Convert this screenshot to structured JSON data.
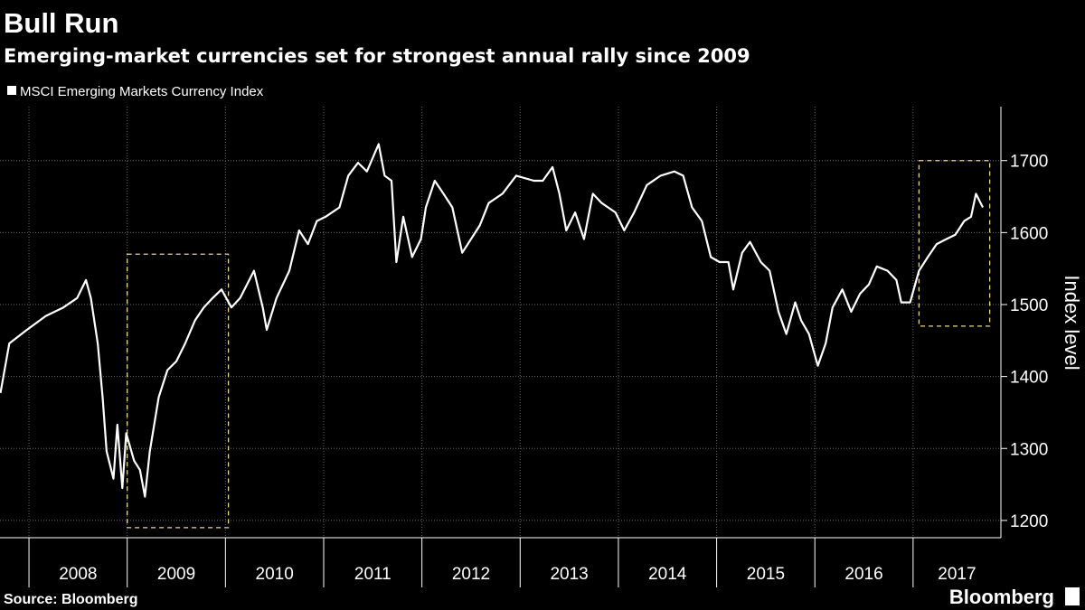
{
  "chart_data": {
    "type": "line",
    "title": "Bull Run",
    "subtitle": "Emerging-market currencies set for strongest annual rally since 2009",
    "y_axis_label": "Index level",
    "source": "Source: Bloomberg",
    "brand": "Bloomberg",
    "x": [
      2007.71,
      2007.8,
      2007.98,
      2008.17,
      2008.35,
      2008.49,
      2008.58,
      2008.63,
      2008.7,
      2008.75,
      2008.79,
      2008.86,
      2008.9,
      2008.95,
      2008.99,
      2009.07,
      2009.13,
      2009.18,
      2009.23,
      2009.32,
      2009.41,
      2009.5,
      2009.59,
      2009.69,
      2009.78,
      2009.87,
      2009.96,
      2010.06,
      2010.15,
      2010.29,
      2010.38,
      2010.42,
      2010.52,
      2010.65,
      2010.75,
      2010.84,
      2010.93,
      2011.02,
      2011.16,
      2011.25,
      2011.35,
      2011.44,
      2011.56,
      2011.62,
      2011.69,
      2011.74,
      2011.81,
      2011.9,
      2011.99,
      2012.04,
      2012.13,
      2012.22,
      2012.31,
      2012.41,
      2012.5,
      2012.59,
      2012.68,
      2012.82,
      2012.96,
      2013.14,
      2013.23,
      2013.33,
      2013.4,
      2013.47,
      2013.56,
      2013.65,
      2013.74,
      2013.83,
      2013.97,
      2014.06,
      2014.16,
      2014.29,
      2014.43,
      2014.57,
      2014.66,
      2014.75,
      2014.85,
      2014.94,
      2015.03,
      2015.12,
      2015.17,
      2015.26,
      2015.34,
      2015.45,
      2015.54,
      2015.63,
      2015.71,
      2015.8,
      2015.86,
      2015.94,
      2016.03,
      2016.11,
      2016.18,
      2016.28,
      2016.37,
      2016.46,
      2016.55,
      2016.63,
      2016.74,
      2016.83,
      2016.88,
      2016.97,
      2017.06,
      2017.15,
      2017.24,
      2017.34,
      2017.43,
      2017.52,
      2017.59,
      2017.64,
      2017.71
    ],
    "series": [
      {
        "name": "MSCI Emerging Markets Currency Index",
        "color": "#ffffff",
        "values": [
          1377,
          1446,
          1465,
          1484,
          1496,
          1509,
          1534,
          1509,
          1446,
          1371,
          1296,
          1258,
          1333,
          1245,
          1321,
          1283,
          1270,
          1233,
          1296,
          1371,
          1409,
          1421,
          1446,
          1478,
          1496,
          1509,
          1521,
          1496,
          1509,
          1547,
          1496,
          1465,
          1509,
          1547,
          1603,
          1584,
          1616,
          1622,
          1635,
          1679,
          1697,
          1685,
          1723,
          1679,
          1672,
          1559,
          1622,
          1566,
          1591,
          1635,
          1672,
          1654,
          1635,
          1572,
          1591,
          1610,
          1641,
          1654,
          1679,
          1672,
          1672,
          1691,
          1654,
          1603,
          1628,
          1591,
          1654,
          1641,
          1628,
          1603,
          1628,
          1666,
          1679,
          1685,
          1679,
          1635,
          1616,
          1566,
          1559,
          1559,
          1521,
          1572,
          1587,
          1559,
          1547,
          1490,
          1459,
          1503,
          1478,
          1459,
          1415,
          1446,
          1496,
          1521,
          1490,
          1515,
          1528,
          1553,
          1547,
          1534,
          1503,
          1503,
          1547,
          1566,
          1584,
          1591,
          1597,
          1616,
          1622,
          1654,
          1635
        ]
      }
    ],
    "xlim": [
      2007.705,
      2017.894
    ],
    "ylim": [
      1176,
      1775
    ],
    "yticks": [
      1200,
      1300,
      1400,
      1500,
      1600,
      1700
    ],
    "xticks": [
      {
        "value": 2008,
        "label": "2008"
      },
      {
        "value": 2009,
        "label": "2009"
      },
      {
        "value": 2010,
        "label": "2010"
      },
      {
        "value": 2011,
        "label": "2011"
      },
      {
        "value": 2012,
        "label": "2012"
      },
      {
        "value": 2013,
        "label": "2013"
      },
      {
        "value": 2014,
        "label": "2014"
      },
      {
        "value": 2015,
        "label": "2015"
      },
      {
        "value": 2016,
        "label": "2016"
      },
      {
        "value": 2017,
        "label": "2017"
      }
    ],
    "grid": true,
    "highlight_boxes": [
      {
        "x": [
          2009.0,
          2010.03
        ],
        "y": [
          1190,
          1570
        ],
        "color": "#e8d98a"
      },
      {
        "x": [
          2017.06,
          2017.78
        ],
        "y": [
          1470,
          1700
        ],
        "color": "#e8d98a"
      }
    ]
  }
}
